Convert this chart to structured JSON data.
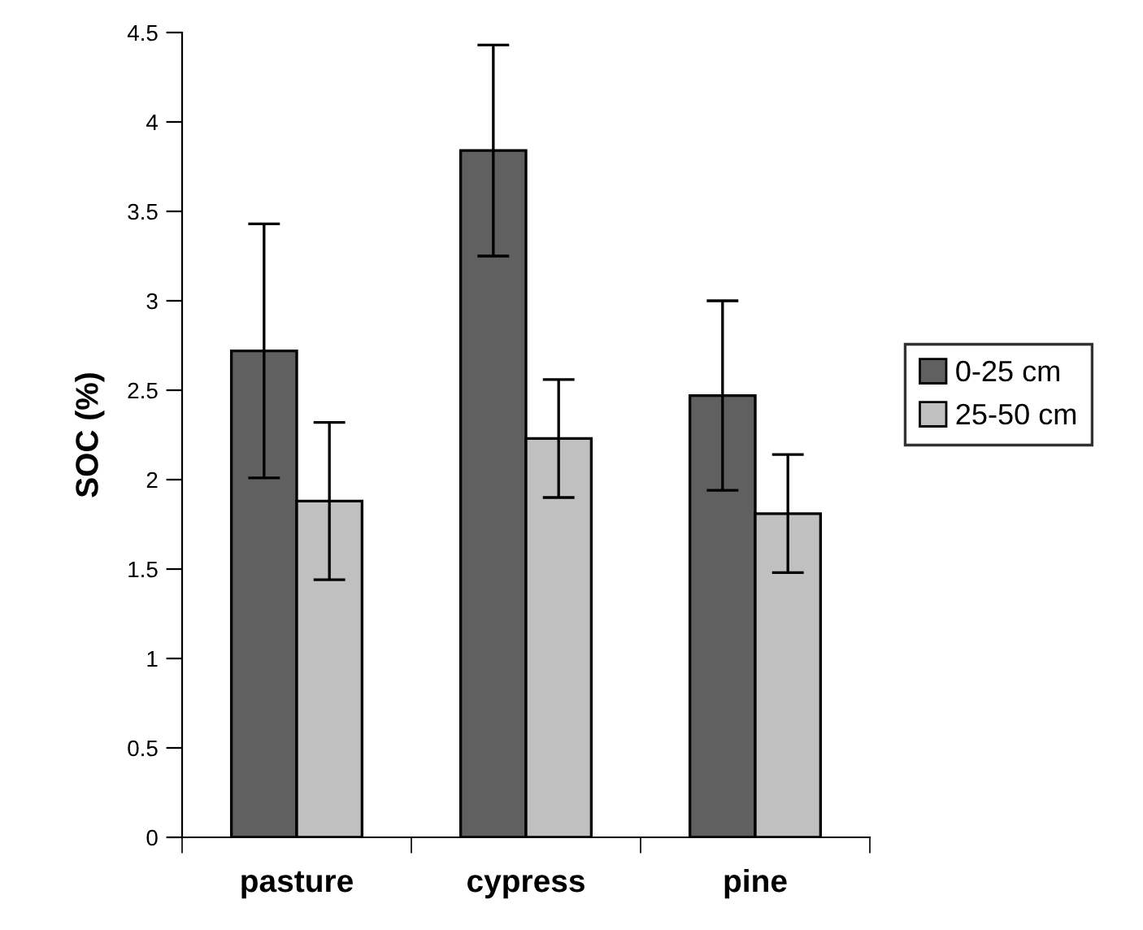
{
  "chart_data": {
    "type": "bar",
    "ylabel": "SOC (%)",
    "categories": [
      "pasture",
      "cypress",
      "pine"
    ],
    "series": [
      {
        "name": "0-25 cm",
        "color": "#606060",
        "values": [
          2.72,
          3.84,
          2.47
        ],
        "errors": [
          0.71,
          0.59,
          0.53
        ]
      },
      {
        "name": "25-50 cm",
        "color": "#c0c0c0",
        "values": [
          1.88,
          2.23,
          1.81
        ],
        "errors": [
          0.44,
          0.33,
          0.33
        ]
      }
    ],
    "ylim": [
      0,
      4.5
    ],
    "yticks": [
      0,
      0.5,
      1,
      1.5,
      2,
      2.5,
      3,
      3.5,
      4,
      4.5
    ],
    "grid": false,
    "legend": "right"
  }
}
